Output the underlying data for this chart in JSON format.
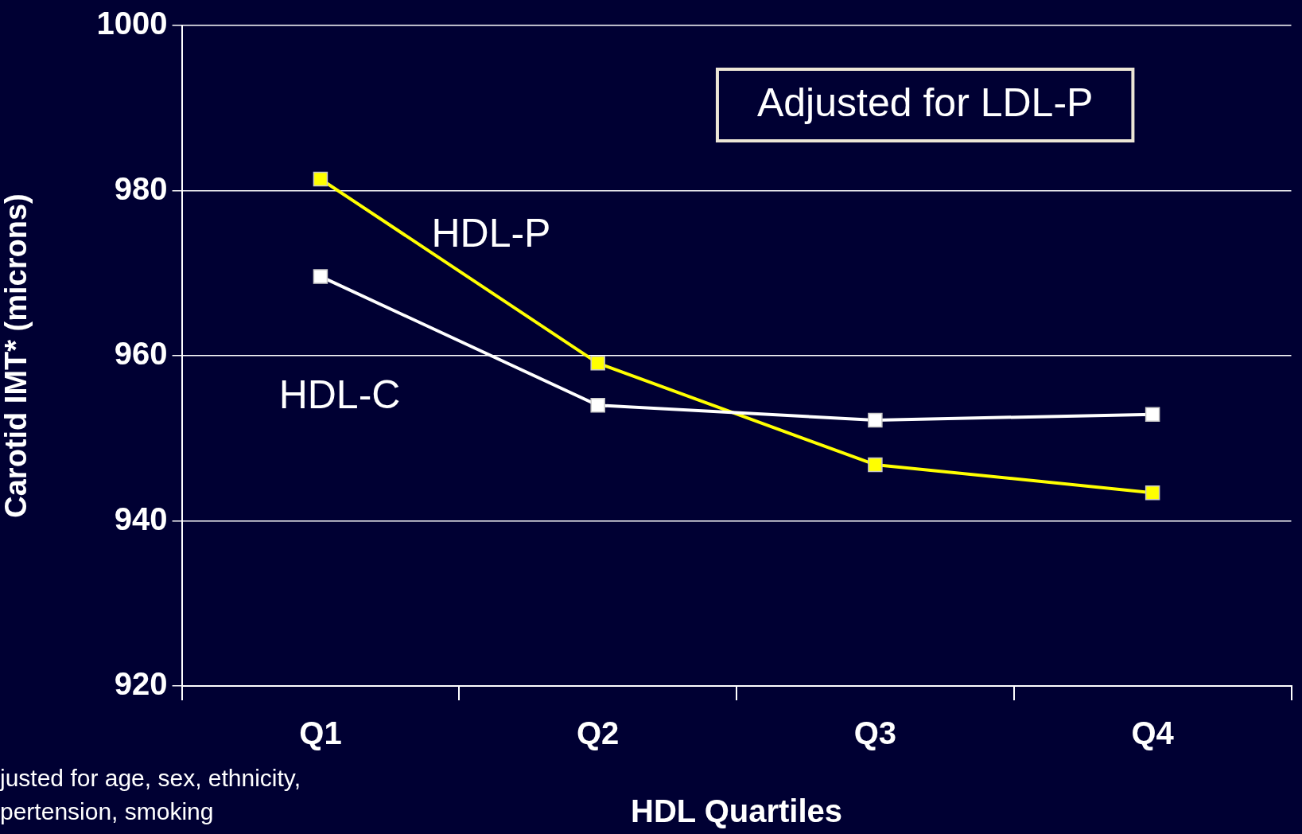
{
  "chart_data": {
    "type": "line",
    "xlabel": "HDL Quartiles",
    "ylabel": "Carotid IMT* (microns)",
    "categories": [
      "Q1",
      "Q2",
      "Q3",
      "Q4"
    ],
    "series": [
      {
        "name": "HDL-C",
        "color": "#ffffff",
        "values": [
          969.6,
          954.0,
          952.2,
          952.9
        ]
      },
      {
        "name": "HDL-P",
        "color": "#ffff00",
        "values": [
          981.4,
          959.1,
          946.8,
          943.4
        ]
      }
    ],
    "ylim": [
      920,
      1000
    ],
    "yticks": [
      920,
      940,
      960,
      980,
      1000
    ],
    "grid": "y",
    "legend": false,
    "marker": "square",
    "line_style": "solid",
    "annotations": [
      "Adjusted for LDL-P",
      "justed for age, sex, ethnicity,\npertension, smoking"
    ]
  }
}
